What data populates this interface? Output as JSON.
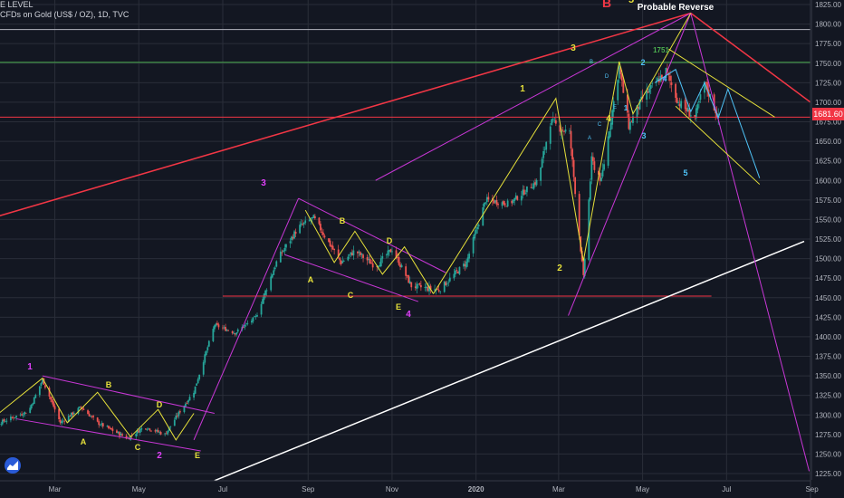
{
  "header": {
    "line1": "E LEVEL",
    "line2": "CFDs on Gold (US$ / OZ), 1D, TVC"
  },
  "chart_data": {
    "type": "candlestick",
    "symbol": "CFDs on Gold (US$ / OZ), 1D, TVC",
    "y_axis": {
      "min": 1225,
      "max": 1825,
      "ticks": [
        1825,
        1800,
        1775,
        1750,
        1725,
        1700,
        1675,
        1650,
        1625,
        1600,
        1575,
        1550,
        1525,
        1500,
        1475,
        1450,
        1425,
        1400,
        1375,
        1350,
        1325,
        1300,
        1275,
        1250,
        1225
      ]
    },
    "x_axis": {
      "ticks": [
        "Mar",
        "May",
        "Jul",
        "Sep",
        "Nov",
        "2020",
        "Mar",
        "May",
        "Jul",
        "Sep"
      ]
    },
    "last_price": "1681.60",
    "price_path": [
      [
        "2019-01-01",
        1288
      ],
      [
        "2019-01-20",
        1290
      ],
      [
        "2019-02-10",
        1305
      ],
      [
        "2019-02-20",
        1345
      ],
      [
        "2019-03-05",
        1290
      ],
      [
        "2019-03-20",
        1310
      ],
      [
        "2019-04-01",
        1290
      ],
      [
        "2019-04-23",
        1270
      ],
      [
        "2019-05-05",
        1285
      ],
      [
        "2019-05-20",
        1275
      ],
      [
        "2019-05-31",
        1305
      ],
      [
        "2019-06-10",
        1330
      ],
      [
        "2019-06-25",
        1415
      ],
      [
        "2019-07-10",
        1405
      ],
      [
        "2019-07-25",
        1425
      ],
      [
        "2019-08-10",
        1500
      ],
      [
        "2019-08-25",
        1540
      ],
      [
        "2019-09-05",
        1552
      ],
      [
        "2019-09-25",
        1495
      ],
      [
        "2019-10-05",
        1510
      ],
      [
        "2019-10-20",
        1490
      ],
      [
        "2019-11-01",
        1512
      ],
      [
        "2019-11-15",
        1465
      ],
      [
        "2019-12-05",
        1460
      ],
      [
        "2019-12-25",
        1495
      ],
      [
        "2020-01-08",
        1575
      ],
      [
        "2020-01-25",
        1570
      ],
      [
        "2020-02-15",
        1600
      ],
      [
        "2020-02-24",
        1675
      ],
      [
        "2020-03-09",
        1660
      ],
      [
        "2020-03-19",
        1475
      ],
      [
        "2020-03-25",
        1625
      ],
      [
        "2020-04-01",
        1600
      ],
      [
        "2020-04-14",
        1745
      ],
      [
        "2020-04-21",
        1670
      ],
      [
        "2020-05-01",
        1705
      ],
      [
        "2020-05-18",
        1740
      ],
      [
        "2020-05-27",
        1700
      ],
      [
        "2020-06-08",
        1680
      ],
      [
        "2020-06-15",
        1725
      ],
      [
        "2020-06-25",
        1680
      ]
    ],
    "lines": {
      "red_resistance": {
        "color": "#f23645",
        "from": [
          "2019-01-01",
          1545
        ],
        "to": "peak"
      },
      "red_down": {
        "color": "#f23645"
      },
      "white_support": {
        "color": "#ffffff"
      },
      "grey_level": {
        "color": "#b2b5be",
        "value": 1793
      },
      "green_level": {
        "color": "#4caf50",
        "value": 1751
      },
      "red_level_1681": {
        "color": "#f23645",
        "value": 1681
      },
      "red_level_1452": {
        "color": "#f23645",
        "value": 1452
      }
    },
    "labels": {
      "probable_reverse": "Probable Reverse",
      "level_1751": "1751",
      "big_b": "B",
      "wave_1_pink": "1",
      "wave_2_pink": "2",
      "wave_3_pink": "3",
      "wave_4_pink": "4",
      "wave_A1": "A",
      "wave_B1": "B",
      "wave_C1": "C",
      "wave_D1": "D",
      "wave_E1": "E",
      "wave_A2": "A",
      "wave_B2": "B",
      "wave_C2": "C",
      "wave_D2": "D",
      "wave_E2": "E",
      "wave_1_y": "1",
      "wave_2_y": "2",
      "wave_3_y": "3",
      "wave_4_y": "4",
      "wave_5_y": "5",
      "wave_1_c": "1",
      "wave_2_c": "2",
      "wave_3_c": "3",
      "wave_4_c": "4",
      "wave_5_c": "5",
      "small_a": "A",
      "small_b": "B",
      "small_c": "C",
      "small_d": "D",
      "small_e": "E"
    }
  }
}
